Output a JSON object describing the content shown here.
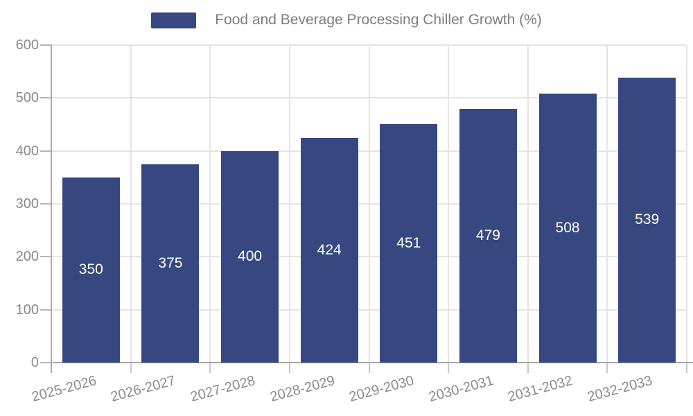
{
  "page": {
    "background_color": "#ffffff"
  },
  "legend": {
    "label": "Food and Beverage Processing Chiller Growth (%)",
    "swatch_color": "#36487F"
  },
  "chart_data": {
    "type": "bar",
    "title": "Food and Beverage Processing Chiller Growth (%)",
    "categories": [
      "2025-2026",
      "2026-2027",
      "2027-2028",
      "2028-2029",
      "2029-2030",
      "2030-2031",
      "2031-2032",
      "2032-2033"
    ],
    "series": [
      {
        "name": "Food and Beverage Processing Chiller Growth (%)",
        "values": [
          350,
          375,
          400,
          424,
          451,
          479,
          508,
          539
        ]
      }
    ],
    "xlabel": "",
    "ylabel": "",
    "ylim": [
      0,
      600
    ],
    "yticks": [
      0,
      100,
      200,
      300,
      400,
      500,
      600
    ],
    "grid": true,
    "legend_position": "top-center",
    "x_tick_rotation_deg": 15,
    "bar_color": "#36487F",
    "value_label_color": "#ffffff",
    "value_label_position": "inside-center"
  }
}
